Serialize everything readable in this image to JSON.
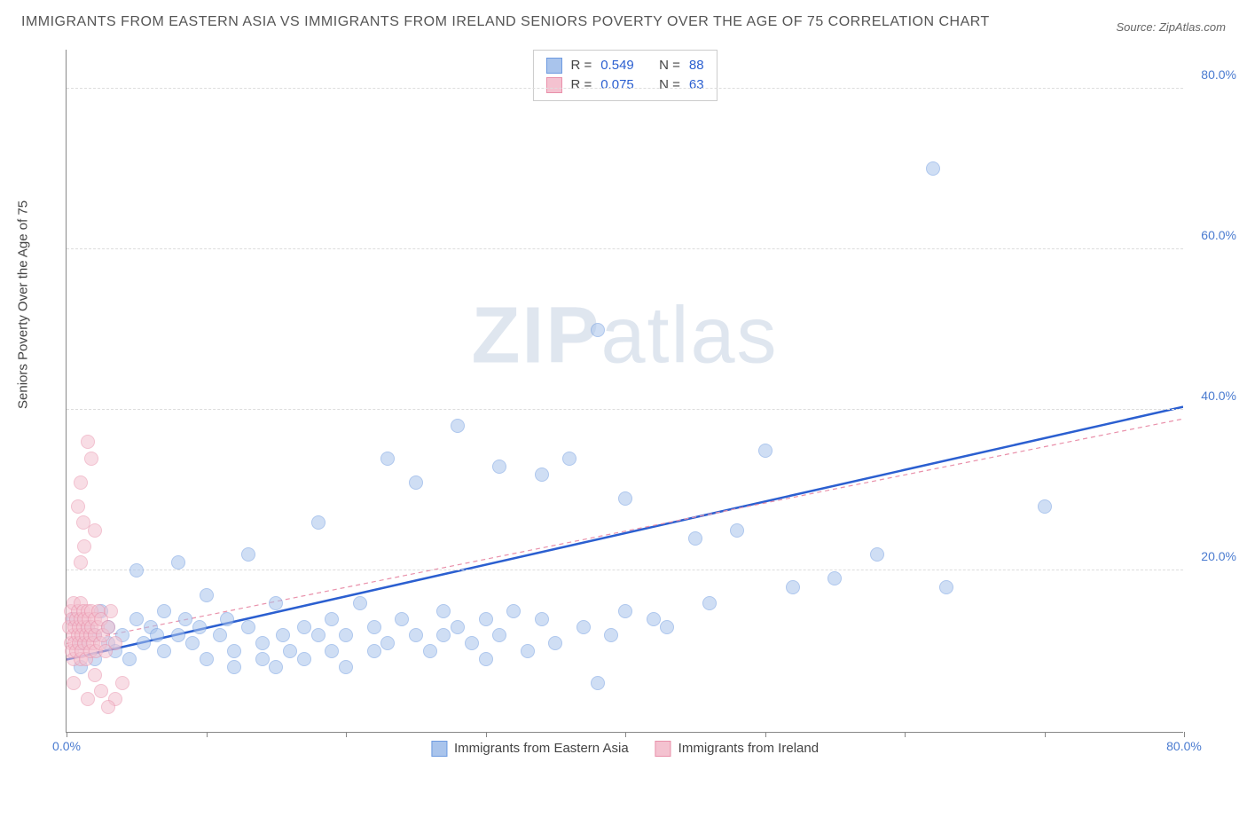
{
  "header": {
    "title": "IMMIGRANTS FROM EASTERN ASIA VS IMMIGRANTS FROM IRELAND SENIORS POVERTY OVER THE AGE OF 75 CORRELATION CHART",
    "source_prefix": "Source: ",
    "source_name": "ZipAtlas.com"
  },
  "chart": {
    "type": "scatter",
    "y_axis_label": "Seniors Poverty Over the Age of 75",
    "xlim": [
      0,
      80
    ],
    "ylim": [
      0,
      85
    ],
    "x_ticks": [
      0,
      10,
      20,
      30,
      40,
      50,
      60,
      70,
      80
    ],
    "x_tick_labels": {
      "0": "0.0%",
      "80": "80.0%"
    },
    "y_ticks": [
      20,
      40,
      60,
      80
    ],
    "y_tick_labels": [
      "20.0%",
      "40.0%",
      "60.0%",
      "80.0%"
    ],
    "background_color": "#ffffff",
    "grid_color": "#dddddd",
    "point_radius": 8,
    "point_opacity": 0.55,
    "watermark": "ZIPatlas",
    "series": [
      {
        "name": "Immigrants from Eastern Asia",
        "color_fill": "#a9c4ec",
        "color_stroke": "#6d9ae0",
        "R": "0.549",
        "N": "88",
        "trend": {
          "x1": 0,
          "y1": 9,
          "x2": 80,
          "y2": 40.5,
          "stroke": "#2b5fd0",
          "width": 2.5,
          "dash": "none"
        },
        "points": [
          [
            0.5,
            14
          ],
          [
            1,
            11
          ],
          [
            1,
            8
          ],
          [
            1.5,
            13
          ],
          [
            2,
            12
          ],
          [
            2,
            9
          ],
          [
            2.5,
            15
          ],
          [
            3,
            11
          ],
          [
            3,
            13
          ],
          [
            3.5,
            10
          ],
          [
            4,
            12
          ],
          [
            4.5,
            9
          ],
          [
            5,
            14
          ],
          [
            5,
            20
          ],
          [
            5.5,
            11
          ],
          [
            6,
            13
          ],
          [
            6.5,
            12
          ],
          [
            7,
            10
          ],
          [
            7,
            15
          ],
          [
            8,
            21
          ],
          [
            8,
            12
          ],
          [
            8.5,
            14
          ],
          [
            9,
            11
          ],
          [
            9.5,
            13
          ],
          [
            10,
            9
          ],
          [
            10,
            17
          ],
          [
            11,
            12
          ],
          [
            11.5,
            14
          ],
          [
            12,
            10
          ],
          [
            12,
            8
          ],
          [
            13,
            13
          ],
          [
            13,
            22
          ],
          [
            14,
            11
          ],
          [
            14,
            9
          ],
          [
            15,
            16
          ],
          [
            15,
            8
          ],
          [
            15.5,
            12
          ],
          [
            16,
            10
          ],
          [
            17,
            13
          ],
          [
            17,
            9
          ],
          [
            18,
            12
          ],
          [
            18,
            26
          ],
          [
            19,
            14
          ],
          [
            19,
            10
          ],
          [
            20,
            12
          ],
          [
            20,
            8
          ],
          [
            21,
            16
          ],
          [
            22,
            10
          ],
          [
            22,
            13
          ],
          [
            23,
            11
          ],
          [
            23,
            34
          ],
          [
            24,
            14
          ],
          [
            25,
            31
          ],
          [
            25,
            12
          ],
          [
            26,
            10
          ],
          [
            27,
            15
          ],
          [
            27,
            12
          ],
          [
            28,
            13
          ],
          [
            28,
            38
          ],
          [
            29,
            11
          ],
          [
            30,
            14
          ],
          [
            30,
            9
          ],
          [
            31,
            12
          ],
          [
            31,
            33
          ],
          [
            32,
            15
          ],
          [
            33,
            10
          ],
          [
            34,
            14
          ],
          [
            34,
            32
          ],
          [
            35,
            11
          ],
          [
            36,
            34
          ],
          [
            37,
            13
          ],
          [
            38,
            50
          ],
          [
            38,
            6
          ],
          [
            39,
            12
          ],
          [
            40,
            29
          ],
          [
            40,
            15
          ],
          [
            42,
            14
          ],
          [
            43,
            13
          ],
          [
            45,
            24
          ],
          [
            46,
            16
          ],
          [
            48,
            25
          ],
          [
            50,
            35
          ],
          [
            52,
            18
          ],
          [
            55,
            19
          ],
          [
            58,
            22
          ],
          [
            62,
            70
          ],
          [
            63,
            18
          ],
          [
            70,
            28
          ]
        ]
      },
      {
        "name": "Immigrants from Ireland",
        "color_fill": "#f4c2d0",
        "color_stroke": "#e990aa",
        "R": "0.075",
        "N": "63",
        "trend": {
          "x1": 0,
          "y1": 11,
          "x2": 80,
          "y2": 39,
          "stroke": "#e990aa",
          "width": 1.2,
          "dash": "5,4"
        },
        "points": [
          [
            0.2,
            13
          ],
          [
            0.3,
            11
          ],
          [
            0.3,
            15
          ],
          [
            0.4,
            10
          ],
          [
            0.4,
            14
          ],
          [
            0.5,
            12
          ],
          [
            0.5,
            9
          ],
          [
            0.5,
            16
          ],
          [
            0.6,
            13
          ],
          [
            0.6,
            11
          ],
          [
            0.7,
            14
          ],
          [
            0.7,
            10
          ],
          [
            0.8,
            12
          ],
          [
            0.8,
            15
          ],
          [
            0.9,
            13
          ],
          [
            0.9,
            11
          ],
          [
            1.0,
            14
          ],
          [
            1.0,
            9
          ],
          [
            1.0,
            16
          ],
          [
            1.1,
            12
          ],
          [
            1.1,
            10
          ],
          [
            1.2,
            13
          ],
          [
            1.2,
            15
          ],
          [
            1.3,
            11
          ],
          [
            1.3,
            14
          ],
          [
            1.4,
            12
          ],
          [
            1.4,
            9
          ],
          [
            1.5,
            13
          ],
          [
            1.5,
            15
          ],
          [
            1.6,
            11
          ],
          [
            1.6,
            14
          ],
          [
            1.7,
            12
          ],
          [
            1.7,
            10
          ],
          [
            1.8,
            13
          ],
          [
            1.8,
            15
          ],
          [
            1.9,
            11
          ],
          [
            2.0,
            14
          ],
          [
            2.0,
            12
          ],
          [
            2.1,
            10
          ],
          [
            2.2,
            13
          ],
          [
            2.3,
            15
          ],
          [
            2.4,
            11
          ],
          [
            2.5,
            14
          ],
          [
            2.6,
            12
          ],
          [
            2.8,
            10
          ],
          [
            3.0,
            13
          ],
          [
            3.2,
            15
          ],
          [
            3.5,
            11
          ],
          [
            0.8,
            28
          ],
          [
            1.0,
            31
          ],
          [
            1.2,
            26
          ],
          [
            1.5,
            36
          ],
          [
            1.8,
            34
          ],
          [
            2.0,
            25
          ],
          [
            1.0,
            21
          ],
          [
            1.3,
            23
          ],
          [
            0.5,
            6
          ],
          [
            1.5,
            4
          ],
          [
            2.5,
            5
          ],
          [
            3.5,
            4
          ],
          [
            4.0,
            6
          ],
          [
            2.0,
            7
          ],
          [
            3.0,
            3
          ]
        ]
      }
    ],
    "legend_bottom": [
      {
        "label": "Immigrants from Eastern Asia",
        "fill": "#a9c4ec",
        "stroke": "#6d9ae0"
      },
      {
        "label": "Immigrants from Ireland",
        "fill": "#f4c2d0",
        "stroke": "#e990aa"
      }
    ]
  }
}
